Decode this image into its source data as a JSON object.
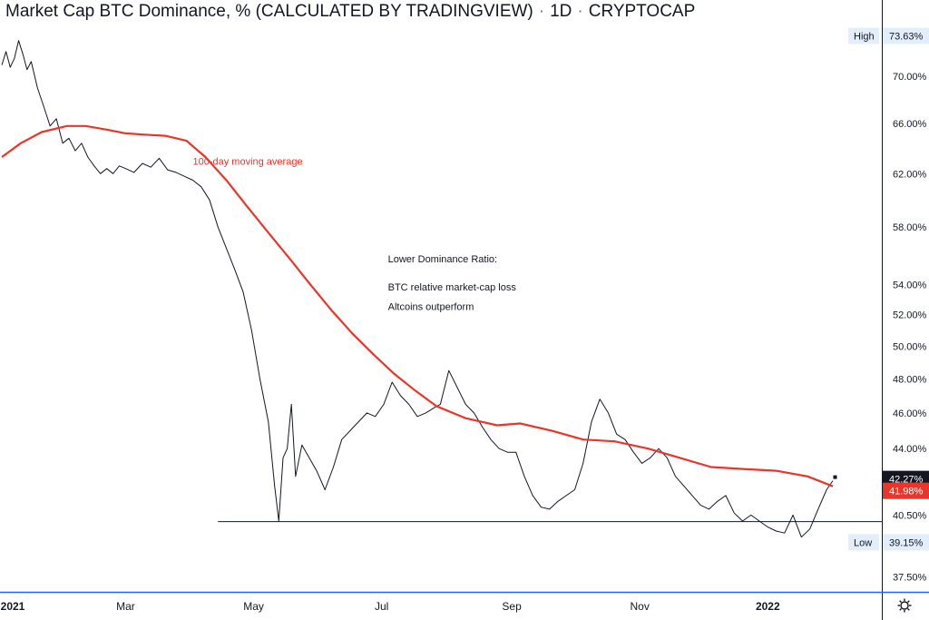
{
  "header": {
    "title": "Market Cap BTC Dominance, % (CALCULATED BY TRADINGVIEW)",
    "interval": "1D",
    "exchange": "CRYPTOCAP"
  },
  "colors": {
    "price_line": "#131722",
    "ma_line": "#e8362b",
    "axis_text": "#131722",
    "last_price_bg": "#131722",
    "ma_label_bg": "#e8362b",
    "high_low_badge_bg": "#e3eefb",
    "support_line": "#131722",
    "bottom_axis_line": "#2962ff"
  },
  "chart_data": {
    "type": "line",
    "title": "Market Cap BTC Dominance, % (CALCULATED BY TRADINGVIEW) · 1D · CRYPTOCAP",
    "xlabel": "",
    "ylabel": "",
    "y_scale": "log",
    "ylim": [
      36.8,
      77.0
    ],
    "x_ticks": [
      "2021",
      "Mar",
      "May",
      "Jul",
      "Sep",
      "Nov",
      "2022"
    ],
    "y_ticks": [
      "70.00%",
      "66.00%",
      "62.00%",
      "58.00%",
      "54.00%",
      "52.00%",
      "50.00%",
      "48.00%",
      "46.00%",
      "44.00%",
      "40.50%",
      "37.50%"
    ],
    "series": [
      {
        "name": "",
        "x": [
          "2021-01-01",
          "2021-01-03",
          "2021-01-05",
          "2021-01-07",
          "2021-01-09",
          "2021-01-11",
          "2021-01-13",
          "2021-01-15",
          "2021-01-18",
          "2021-01-21",
          "2021-01-24",
          "2021-01-27",
          "2021-01-30",
          "2021-02-02",
          "2021-02-05",
          "2021-02-08",
          "2021-02-11",
          "2021-02-14",
          "2021-02-17",
          "2021-02-20",
          "2021-02-23",
          "2021-02-26",
          "2021-03-01",
          "2021-03-05",
          "2021-03-09",
          "2021-03-13",
          "2021-03-17",
          "2021-03-21",
          "2021-03-25",
          "2021-03-29",
          "2021-04-02",
          "2021-04-06",
          "2021-04-10",
          "2021-04-14",
          "2021-04-18",
          "2021-04-22",
          "2021-04-26",
          "2021-04-30",
          "2021-05-04",
          "2021-05-08",
          "2021-05-11",
          "2021-05-13",
          "2021-05-15",
          "2021-05-17",
          "2021-05-19",
          "2021-05-21",
          "2021-05-24",
          "2021-05-27",
          "2021-05-31",
          "2021-06-04",
          "2021-06-08",
          "2021-06-12",
          "2021-06-16",
          "2021-06-20",
          "2021-06-24",
          "2021-06-28",
          "2021-07-02",
          "2021-07-06",
          "2021-07-10",
          "2021-07-14",
          "2021-07-18",
          "2021-07-22",
          "2021-07-26",
          "2021-07-29",
          "2021-08-02",
          "2021-08-06",
          "2021-08-10",
          "2021-08-14",
          "2021-08-18",
          "2021-08-22",
          "2021-08-26",
          "2021-08-30",
          "2021-09-03",
          "2021-09-07",
          "2021-09-11",
          "2021-09-15",
          "2021-09-19",
          "2021-09-23",
          "2021-09-27",
          "2021-10-01",
          "2021-10-05",
          "2021-10-09",
          "2021-10-13",
          "2021-10-17",
          "2021-10-21",
          "2021-10-25",
          "2021-10-29",
          "2021-11-02",
          "2021-11-06",
          "2021-11-10",
          "2021-11-14",
          "2021-11-18",
          "2021-11-22",
          "2021-11-26",
          "2021-11-30",
          "2021-12-04",
          "2021-12-08",
          "2021-12-12",
          "2021-12-16",
          "2021-12-20",
          "2021-12-24",
          "2021-12-28",
          "2022-01-01",
          "2022-01-05",
          "2022-01-09",
          "2022-01-13",
          "2022-01-17",
          "2022-01-21",
          "2022-01-25",
          "2022-01-29",
          "2022-02-01"
        ],
        "y": [
          71.0,
          72.2,
          70.8,
          71.6,
          73.2,
          72.0,
          70.6,
          71.3,
          69.0,
          67.4,
          65.8,
          66.4,
          64.4,
          64.8,
          63.8,
          64.4,
          63.3,
          62.6,
          62.0,
          62.4,
          62.0,
          62.6,
          62.4,
          62.1,
          62.8,
          62.5,
          63.2,
          62.3,
          62.1,
          61.8,
          61.5,
          61.0,
          60.0,
          58.0,
          56.5,
          55.0,
          53.5,
          51.0,
          48.0,
          45.5,
          42.0,
          40.2,
          43.5,
          44.0,
          46.5,
          42.5,
          44.2,
          43.6,
          42.8,
          41.8,
          43.0,
          44.5,
          45.0,
          45.5,
          46.0,
          45.8,
          46.5,
          47.8,
          47.0,
          46.5,
          45.8,
          46.0,
          46.3,
          46.5,
          48.5,
          47.5,
          46.5,
          46.0,
          45.2,
          44.5,
          44.0,
          43.8,
          43.8,
          42.5,
          41.5,
          40.9,
          40.8,
          41.2,
          41.5,
          41.8,
          43.2,
          45.5,
          46.8,
          46.0,
          44.8,
          44.5,
          43.8,
          43.2,
          43.5,
          44.0,
          43.5,
          42.5,
          42.0,
          41.5,
          41.0,
          40.8,
          41.2,
          41.5,
          40.6,
          40.2,
          40.5,
          40.2,
          39.9,
          39.7,
          39.6,
          40.5,
          39.4,
          39.8,
          40.8,
          41.8,
          42.27
        ]
      },
      {
        "name": "100-day moving average",
        "x": [
          "2021-01-01",
          "2021-01-10",
          "2021-01-20",
          "2021-02-01",
          "2021-02-10",
          "2021-02-20",
          "2021-03-01",
          "2021-03-10",
          "2021-03-20",
          "2021-03-30",
          "2021-04-08",
          "2021-04-18",
          "2021-04-28",
          "2021-05-08",
          "2021-05-18",
          "2021-05-28",
          "2021-06-07",
          "2021-06-17",
          "2021-06-27",
          "2021-07-07",
          "2021-07-17",
          "2021-07-27",
          "2021-08-10",
          "2021-08-25",
          "2021-09-05",
          "2021-09-20",
          "2021-10-05",
          "2021-10-20",
          "2021-11-05",
          "2021-11-20",
          "2021-12-05",
          "2021-12-20",
          "2022-01-05",
          "2022-01-20",
          "2022-02-01"
        ],
        "y": [
          63.3,
          64.4,
          65.3,
          65.8,
          65.8,
          65.5,
          65.2,
          65.1,
          65.0,
          64.6,
          63.3,
          61.5,
          59.5,
          57.6,
          55.8,
          54.0,
          52.3,
          50.8,
          49.5,
          48.3,
          47.3,
          46.4,
          45.7,
          45.3,
          45.4,
          45.0,
          44.5,
          44.4,
          44.0,
          43.5,
          43.0,
          42.9,
          42.8,
          42.5,
          41.98
        ]
      }
    ],
    "annotations": [
      {
        "text": "100-day moving average",
        "x": "2021-04-02",
        "y": 62.7,
        "color": "#e8362b"
      },
      {
        "text": "Lower Dominance Ratio:",
        "x": "2021-07-04",
        "y": 55.5,
        "color": "#131722"
      },
      {
        "text": "BTC relative market-cap loss",
        "x": "2021-07-04",
        "y": 53.6,
        "color": "#131722"
      },
      {
        "text": "Altcoins outperform",
        "x": "2021-07-04",
        "y": 52.3,
        "color": "#131722"
      }
    ],
    "support_level": {
      "y": 40.17,
      "x_start": "2021-04-14"
    },
    "price_badges": [
      {
        "label": "High",
        "value": "73.63%",
        "y": 73.63
      },
      {
        "label": "Low",
        "value": "39.15%",
        "y": 39.15
      }
    ],
    "last_value_labels": [
      {
        "value": "42.27%",
        "y": 42.27,
        "role": "last-price"
      },
      {
        "value": "41.98%",
        "y": 41.98,
        "role": "ma-value"
      }
    ],
    "grid": false
  },
  "footer": {
    "settings_icon": "gear-icon"
  }
}
